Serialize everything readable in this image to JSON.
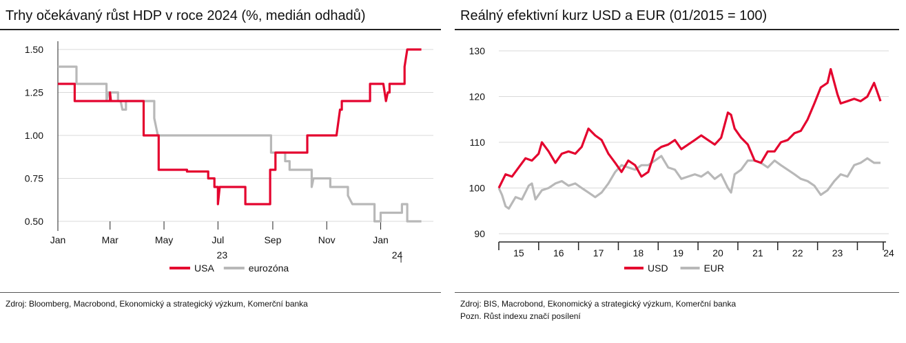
{
  "colors": {
    "usa": "#e4032e",
    "eur": "#b8b8b8",
    "grid": "#d9d9d9",
    "axis": "#222222"
  },
  "left": {
    "title": "Trhy očekávaný růst HDP v roce 2024 (%, medián odhadů)",
    "source": "Zdroj: Bloomberg, Macrobond, Ekonomický a strategický výzkum, Komerční banka"
  },
  "right": {
    "title": "Reálný efektivní kurz USD a EUR (01/2015 = 100)",
    "source": "Zdroj: BIS, Macrobond, Ekonomický a strategický výzkum, Komerční banka",
    "note": "Pozn. Růst indexu značí posílení"
  },
  "chart_data": [
    {
      "type": "line",
      "title": "Trhy očekávaný růst HDP v roce 2024 (%, medián odhadů)",
      "ylim": [
        0.5,
        1.5
      ],
      "xlim": [
        "2023-01-01",
        "2024-02-28"
      ],
      "y_ticks": [
        "1.50",
        "1.25",
        "1.00",
        "0.75",
        "0.50"
      ],
      "y_tick_values": [
        1.5,
        1.25,
        1.0,
        0.75,
        0.5
      ],
      "x_ticks": [
        {
          "label": "Jan",
          "date": "2023-01-01"
        },
        {
          "label": "Mar",
          "date": "2023-03-01"
        },
        {
          "label": "May",
          "date": "2023-05-01"
        },
        {
          "label": "Jul",
          "date": "2023-07-01"
        },
        {
          "label": "Sep",
          "date": "2023-09-01"
        },
        {
          "label": "Nov",
          "date": "2023-11-01"
        },
        {
          "label": "Jan",
          "date": "2024-01-01"
        }
      ],
      "year_labels": [
        {
          "label": "23",
          "date": "2023-07-01"
        },
        {
          "label": "24",
          "date": "2024-01-15"
        }
      ],
      "grid": "horizontal",
      "legend": "bottom-center",
      "series": [
        {
          "name": "USA",
          "color": "#e4032e",
          "points": [
            [
              "2023-01-01",
              1.3
            ],
            [
              "2023-01-20",
              1.3
            ],
            [
              "2023-01-20",
              1.2
            ],
            [
              "2023-03-01",
              1.2
            ],
            [
              "2023-03-01",
              1.25
            ],
            [
              "2023-03-02",
              1.2
            ],
            [
              "2023-04-08",
              1.2
            ],
            [
              "2023-04-08",
              1.0
            ],
            [
              "2023-04-25",
              1.0
            ],
            [
              "2023-04-25",
              0.8
            ],
            [
              "2023-05-27",
              0.8
            ],
            [
              "2023-05-27",
              0.79
            ],
            [
              "2023-06-20",
              0.79
            ],
            [
              "2023-06-20",
              0.75
            ],
            [
              "2023-06-27",
              0.75
            ],
            [
              "2023-06-27",
              0.7
            ],
            [
              "2023-07-01",
              0.7
            ],
            [
              "2023-07-01",
              0.6
            ],
            [
              "2023-07-03",
              0.7
            ],
            [
              "2023-08-01",
              0.7
            ],
            [
              "2023-08-01",
              0.6
            ],
            [
              "2023-08-29",
              0.6
            ],
            [
              "2023-08-29",
              0.8
            ],
            [
              "2023-09-04",
              0.8
            ],
            [
              "2023-09-04",
              0.9
            ],
            [
              "2023-10-10",
              0.9
            ],
            [
              "2023-10-10",
              1.0
            ],
            [
              "2023-11-12",
              1.0
            ],
            [
              "2023-11-16",
              1.15
            ],
            [
              "2023-11-18",
              1.15
            ],
            [
              "2023-11-18",
              1.2
            ],
            [
              "2023-12-20",
              1.2
            ],
            [
              "2023-12-20",
              1.3
            ],
            [
              "2024-01-04",
              1.3
            ],
            [
              "2024-01-07",
              1.2
            ],
            [
              "2024-01-09",
              1.25
            ],
            [
              "2024-01-11",
              1.25
            ],
            [
              "2024-01-11",
              1.3
            ],
            [
              "2024-01-28",
              1.3
            ],
            [
              "2024-01-28",
              1.4
            ],
            [
              "2024-01-31",
              1.5
            ],
            [
              "2024-02-16",
              1.5
            ]
          ]
        },
        {
          "name": "eurozóna",
          "color": "#b8b8b8",
          "points": [
            [
              "2023-01-01",
              1.4
            ],
            [
              "2023-01-22",
              1.4
            ],
            [
              "2023-01-22",
              1.3
            ],
            [
              "2023-02-25",
              1.3
            ],
            [
              "2023-02-25",
              1.2
            ],
            [
              "2023-02-27",
              1.25
            ],
            [
              "2023-03-10",
              1.25
            ],
            [
              "2023-03-10",
              1.2
            ],
            [
              "2023-03-13",
              1.2
            ],
            [
              "2023-03-15",
              1.15
            ],
            [
              "2023-03-19",
              1.15
            ],
            [
              "2023-03-19",
              1.2
            ],
            [
              "2023-04-20",
              1.2
            ],
            [
              "2023-04-20",
              1.1
            ],
            [
              "2023-04-24",
              1.0
            ],
            [
              "2023-08-30",
              1.0
            ],
            [
              "2023-08-30",
              0.9
            ],
            [
              "2023-09-15",
              0.9
            ],
            [
              "2023-09-15",
              0.85
            ],
            [
              "2023-09-20",
              0.85
            ],
            [
              "2023-09-20",
              0.8
            ],
            [
              "2023-10-15",
              0.8
            ],
            [
              "2023-10-15",
              0.7
            ],
            [
              "2023-10-17",
              0.75
            ],
            [
              "2023-11-05",
              0.75
            ],
            [
              "2023-11-05",
              0.7
            ],
            [
              "2023-11-25",
              0.7
            ],
            [
              "2023-11-25",
              0.65
            ],
            [
              "2023-11-30",
              0.6
            ],
            [
              "2023-12-25",
              0.6
            ],
            [
              "2023-12-25",
              0.5
            ],
            [
              "2024-01-01",
              0.5
            ],
            [
              "2024-01-01",
              0.55
            ],
            [
              "2024-01-25",
              0.55
            ],
            [
              "2024-01-25",
              0.6
            ],
            [
              "2024-01-31",
              0.6
            ],
            [
              "2024-01-31",
              0.5
            ],
            [
              "2024-02-16",
              0.5
            ]
          ]
        }
      ]
    },
    {
      "type": "line",
      "title": "Reálný efektivní kurz USD a EUR (01/2015 = 100)",
      "ylim": [
        90,
        130
      ],
      "xlim": [
        2015.0,
        2024.0
      ],
      "y_ticks": [
        "130",
        "120",
        "110",
        "100",
        "90"
      ],
      "y_tick_values": [
        130,
        120,
        110,
        100,
        90
      ],
      "x_ticks": [
        {
          "label": "15",
          "x": 2015.5
        },
        {
          "label": "16",
          "x": 2016.5
        },
        {
          "label": "17",
          "x": 2017.5
        },
        {
          "label": "18",
          "x": 2018.5
        },
        {
          "label": "19",
          "x": 2019.5
        },
        {
          "label": "20",
          "x": 2020.5
        },
        {
          "label": "21",
          "x": 2021.5
        },
        {
          "label": "22",
          "x": 2022.5
        },
        {
          "label": "23",
          "x": 2023.5
        },
        {
          "label": "24",
          "x": 2024.0
        }
      ],
      "year_boundaries": [
        2015,
        2016,
        2017,
        2018,
        2019,
        2020,
        2021,
        2022,
        2023,
        2024
      ],
      "grid": "horizontal",
      "legend": "bottom-center",
      "series": [
        {
          "name": "USD",
          "color": "#e4032e",
          "points": [
            [
              2015.0,
              100
            ],
            [
              2015.17,
              103
            ],
            [
              2015.33,
              102.5
            ],
            [
              2015.5,
              104.5
            ],
            [
              2015.67,
              106.5
            ],
            [
              2015.83,
              106
            ],
            [
              2016.0,
              107.5
            ],
            [
              2016.08,
              110
            ],
            [
              2016.25,
              108
            ],
            [
              2016.42,
              105.5
            ],
            [
              2016.58,
              107.5
            ],
            [
              2016.75,
              108
            ],
            [
              2016.92,
              107.5
            ],
            [
              2017.08,
              109
            ],
            [
              2017.25,
              113
            ],
            [
              2017.42,
              111.5
            ],
            [
              2017.58,
              110.5
            ],
            [
              2017.75,
              107.5
            ],
            [
              2017.92,
              105.5
            ],
            [
              2018.08,
              103.5
            ],
            [
              2018.25,
              106
            ],
            [
              2018.42,
              105
            ],
            [
              2018.58,
              102.5
            ],
            [
              2018.75,
              103.5
            ],
            [
              2018.92,
              108
            ],
            [
              2019.08,
              109
            ],
            [
              2019.25,
              109.5
            ],
            [
              2019.42,
              110.5
            ],
            [
              2019.58,
              108.5
            ],
            [
              2019.75,
              109.5
            ],
            [
              2019.92,
              110.5
            ],
            [
              2020.08,
              111.5
            ],
            [
              2020.25,
              110.5
            ],
            [
              2020.42,
              109.5
            ],
            [
              2020.58,
              111
            ],
            [
              2020.75,
              116.5
            ],
            [
              2020.83,
              116
            ],
            [
              2020.92,
              113
            ],
            [
              2021.08,
              111
            ],
            [
              2021.25,
              109.5
            ],
            [
              2021.42,
              106
            ],
            [
              2021.58,
              105.5
            ],
            [
              2021.75,
              108
            ],
            [
              2021.92,
              108
            ],
            [
              2022.08,
              110
            ],
            [
              2022.25,
              110.5
            ],
            [
              2022.42,
              112
            ],
            [
              2022.58,
              112.5
            ],
            [
              2022.75,
              115
            ],
            [
              2022.92,
              118.5
            ],
            [
              2023.08,
              122
            ],
            [
              2023.25,
              123
            ],
            [
              2023.33,
              126
            ],
            [
              2023.5,
              120.5
            ],
            [
              2023.58,
              118.5
            ],
            [
              2023.75,
              119
            ],
            [
              2023.92,
              119.5
            ],
            [
              2024.08,
              119
            ],
            [
              2024.25,
              120
            ],
            [
              2024.42,
              123
            ],
            [
              2024.58,
              119
            ]
          ]
        },
        {
          "name": "EUR",
          "color": "#b8b8b8",
          "points": [
            [
              2015.0,
              100
            ],
            [
              2015.08,
              98.5
            ],
            [
              2015.17,
              96
            ],
            [
              2015.25,
              95.5
            ],
            [
              2015.42,
              98
            ],
            [
              2015.58,
              97.5
            ],
            [
              2015.75,
              100.5
            ],
            [
              2015.83,
              101
            ],
            [
              2015.92,
              97.5
            ],
            [
              2016.08,
              99.5
            ],
            [
              2016.25,
              100
            ],
            [
              2016.42,
              101
            ],
            [
              2016.58,
              101.5
            ],
            [
              2016.75,
              100.5
            ],
            [
              2016.92,
              101
            ],
            [
              2017.08,
              100
            ],
            [
              2017.25,
              99
            ],
            [
              2017.42,
              98
            ],
            [
              2017.58,
              99
            ],
            [
              2017.75,
              101
            ],
            [
              2017.92,
              103.5
            ],
            [
              2018.08,
              105
            ],
            [
              2018.25,
              104.5
            ],
            [
              2018.42,
              104
            ],
            [
              2018.58,
              105
            ],
            [
              2018.75,
              105
            ],
            [
              2018.92,
              106
            ],
            [
              2019.08,
              107
            ],
            [
              2019.25,
              104.5
            ],
            [
              2019.42,
              104
            ],
            [
              2019.58,
              102
            ],
            [
              2019.75,
              102.5
            ],
            [
              2019.92,
              103
            ],
            [
              2020.08,
              102.5
            ],
            [
              2020.25,
              103.5
            ],
            [
              2020.42,
              102
            ],
            [
              2020.58,
              103
            ],
            [
              2020.75,
              100
            ],
            [
              2020.83,
              99
            ],
            [
              2020.92,
              103
            ],
            [
              2021.08,
              104
            ],
            [
              2021.25,
              106
            ],
            [
              2021.42,
              106
            ],
            [
              2021.58,
              105.5
            ],
            [
              2021.75,
              104.5
            ],
            [
              2021.92,
              106
            ],
            [
              2022.08,
              105
            ],
            [
              2022.25,
              104
            ],
            [
              2022.42,
              103
            ],
            [
              2022.58,
              102
            ],
            [
              2022.75,
              101.5
            ],
            [
              2022.92,
              100.5
            ],
            [
              2023.08,
              98.5
            ],
            [
              2023.25,
              99.5
            ],
            [
              2023.42,
              101.5
            ],
            [
              2023.58,
              103
            ],
            [
              2023.75,
              102.5
            ],
            [
              2023.92,
              105
            ],
            [
              2024.08,
              105.5
            ],
            [
              2024.25,
              106.5
            ],
            [
              2024.42,
              105.5
            ],
            [
              2024.58,
              105.5
            ]
          ]
        }
      ]
    }
  ]
}
